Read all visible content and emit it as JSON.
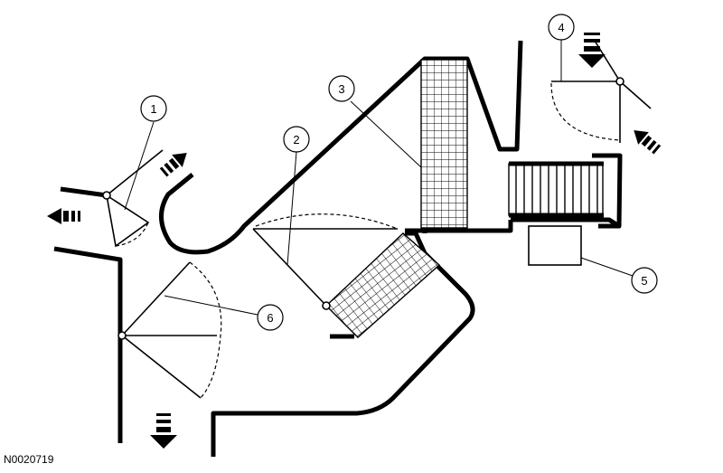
{
  "figure_id": "N0020719",
  "callouts": [
    "1",
    "2",
    "3",
    "4",
    "5",
    "6"
  ]
}
